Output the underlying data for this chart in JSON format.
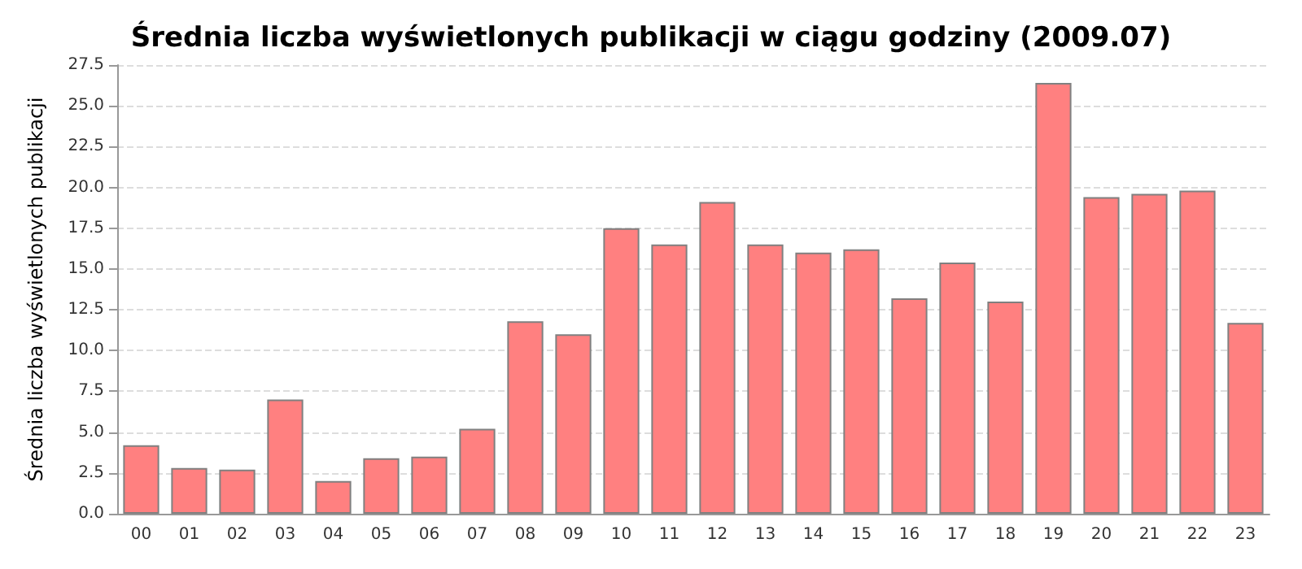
{
  "chart_data": {
    "type": "bar",
    "title": "Średnia liczba wyświetlonych publikacji w ciągu godziny (2009.07)",
    "ylabel": "Średnia liczba wyświetlonych publikacji",
    "categories": [
      "00",
      "01",
      "02",
      "03",
      "04",
      "05",
      "06",
      "07",
      "08",
      "09",
      "10",
      "11",
      "12",
      "13",
      "14",
      "15",
      "16",
      "17",
      "18",
      "19",
      "20",
      "21",
      "22",
      "23"
    ],
    "values": [
      4.2,
      2.8,
      2.7,
      7.0,
      2.0,
      3.4,
      3.5,
      5.2,
      11.8,
      11.0,
      17.5,
      16.5,
      19.1,
      16.5,
      16.0,
      16.2,
      13.2,
      15.4,
      13.0,
      26.4,
      19.4,
      19.6,
      19.8,
      11.7
    ],
    "color": "#ff8080",
    "ylim": [
      0,
      27.5
    ],
    "yticks": [
      {
        "value": 0,
        "label": "0.0"
      },
      {
        "value": 2.5,
        "label": "2.5"
      },
      {
        "value": 5,
        "label": "5.0"
      },
      {
        "value": 7.5,
        "label": "7.5"
      },
      {
        "value": 10,
        "label": "10.0"
      },
      {
        "value": 12.5,
        "label": "12.5"
      },
      {
        "value": 15,
        "label": "15.0"
      },
      {
        "value": 17.5,
        "label": "17.5"
      },
      {
        "value": 20,
        "label": "20.0"
      },
      {
        "value": 22.5,
        "label": "22.5"
      },
      {
        "value": 25,
        "label": "25.0"
      },
      {
        "value": 27.5,
        "label": "27.5"
      }
    ],
    "grid": "y"
  }
}
